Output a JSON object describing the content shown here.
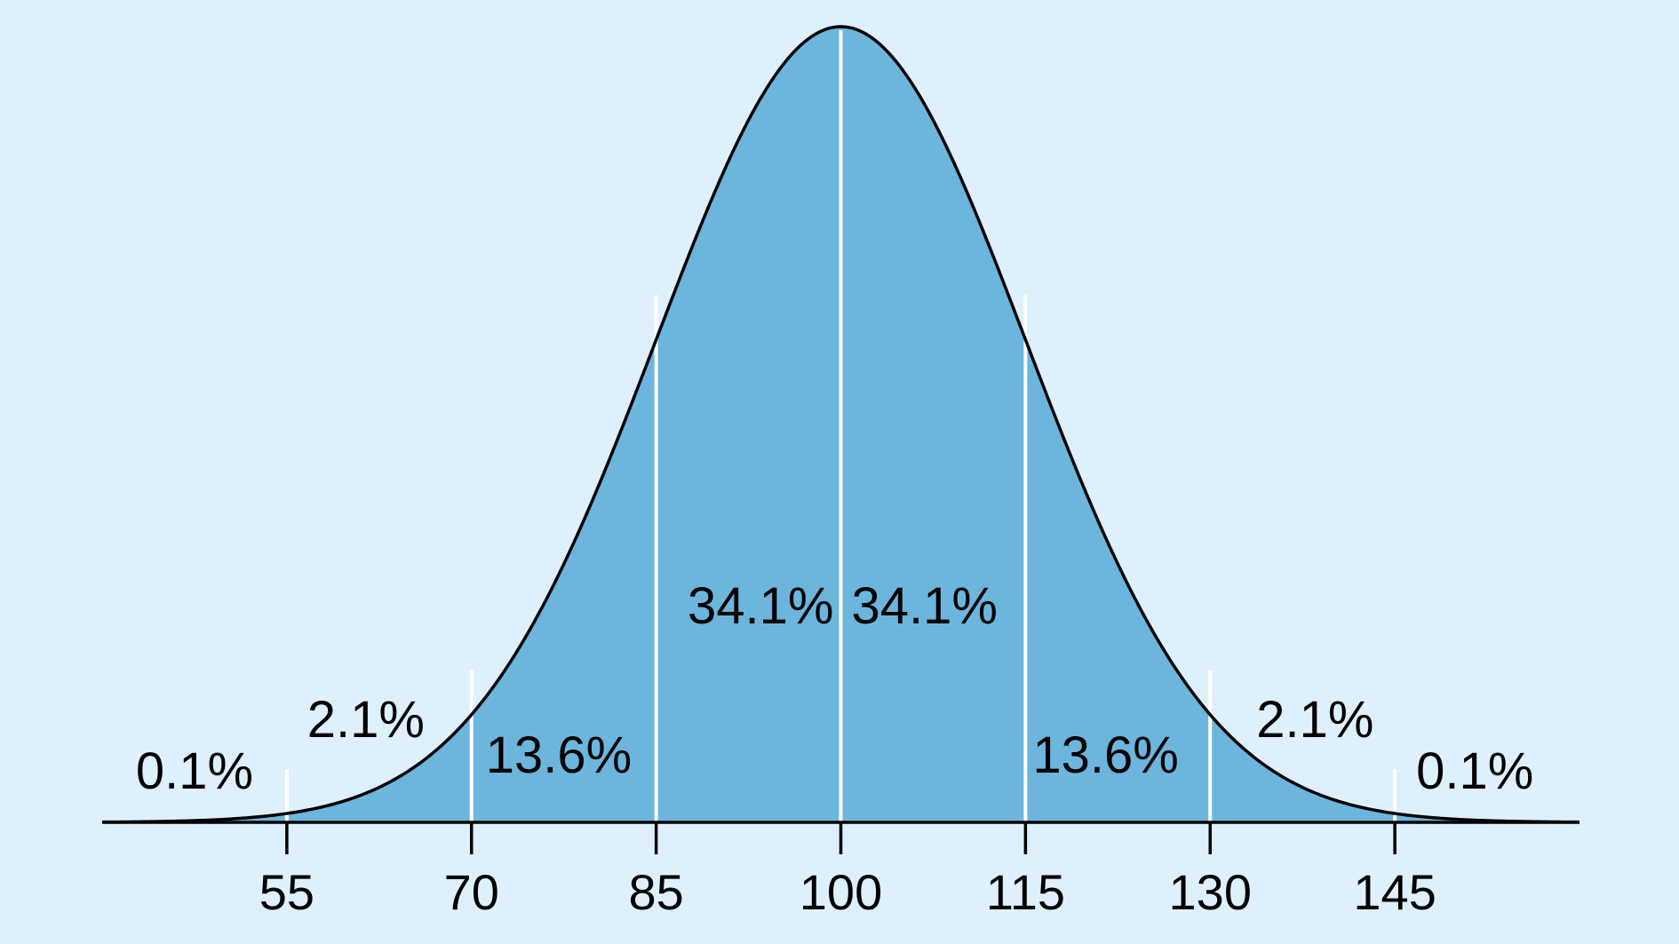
{
  "chart_data": {
    "type": "area",
    "distribution": "normal",
    "mean": 100,
    "sd": 15,
    "xlim": [
      40,
      160
    ],
    "x_ticks": [
      55,
      70,
      85,
      100,
      115,
      130,
      145
    ],
    "x_tick_labels": [
      "55",
      "70",
      "85",
      "100",
      "115",
      "130",
      "145"
    ],
    "band_dividers": [
      55,
      70,
      85,
      100,
      115,
      130,
      145
    ],
    "band_labels": [
      {
        "text": "0.1%",
        "x": 47.5,
        "band": "below 55"
      },
      {
        "text": "2.1%",
        "x": 62.5,
        "band": "55-70"
      },
      {
        "text": "13.6%",
        "x": 77.5,
        "band": "70-85"
      },
      {
        "text": "34.1%",
        "x": 92.5,
        "band": "85-100"
      },
      {
        "text": "34.1%",
        "x": 107.5,
        "band": "100-115"
      },
      {
        "text": "13.6%",
        "x": 122.5,
        "band": "115-130"
      },
      {
        "text": "2.1%",
        "x": 137.5,
        "band": "130-145"
      },
      {
        "text": "0.1%",
        "x": 152.5,
        "band": "above 145"
      }
    ],
    "title": "",
    "xlabel": "",
    "ylabel": "",
    "grid": false,
    "legend": "none"
  },
  "colors": {
    "background": "#dff0fd",
    "fill": "#6cb6de",
    "curve": "#000000",
    "divider": "#ffffff",
    "axis": "#000000"
  }
}
